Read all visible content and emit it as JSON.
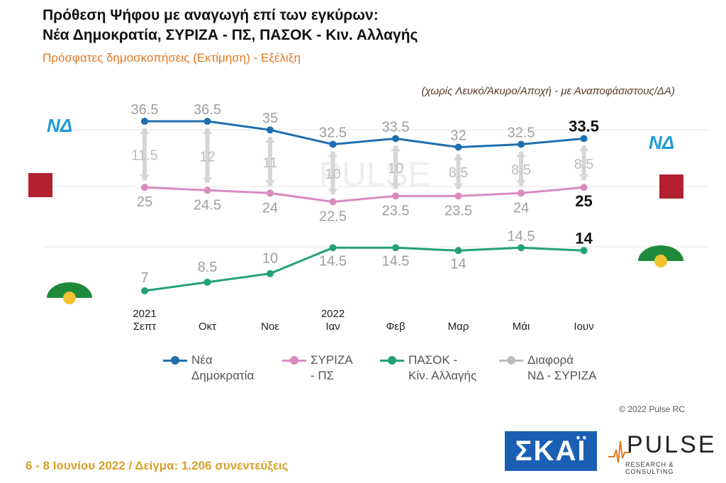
{
  "header": {
    "title_line1": "Πρόθεση Ψήφου με αναγωγή επί των εγκύρων:",
    "title_line2": "Νέα Δημοκρατία, ΣΥΡΙΖΑ - ΠΣ, ΠΑΣΟΚ - Κιν. Αλλαγής",
    "subtitle": "Πρόσφατες δημοσκοπήσεις (Εκτίμηση) - Εξέλιξη",
    "note": "(χωρίς Λευκό/Άκυρο/Αποχή - με Αναποφάσιστους/ΔΑ)"
  },
  "colors": {
    "nd": "#1f6fb0",
    "syriza": "#d98bbf",
    "pasok": "#23a178",
    "diff": "#bdbdbd"
  },
  "chart_data": {
    "type": "line",
    "categories": [
      [
        "2021",
        "Σεπτ"
      ],
      [
        "Οκτ"
      ],
      [
        "Νοε"
      ],
      [
        "2022",
        "Ιαν"
      ],
      [
        "Φεβ"
      ],
      [
        "Μαρ"
      ],
      [
        "Μάι"
      ],
      [
        "Ιουν"
      ]
    ],
    "series": [
      {
        "name": "Νέα Δημοκρατία",
        "key": "nd",
        "values": [
          36.5,
          36.5,
          35,
          32.5,
          33.5,
          32,
          32.5,
          33.5
        ],
        "labels": [
          "36.5",
          "36.5",
          "35",
          "32.5",
          "33.5",
          "32",
          "32.5",
          "33.5"
        ]
      },
      {
        "name": "ΣΥΡΙΖΑ - ΠΣ",
        "key": "syriza",
        "values": [
          25,
          24.5,
          24,
          22.5,
          23.5,
          23.5,
          24,
          25
        ],
        "labels": [
          "25",
          "24.5",
          "24",
          "22.5",
          "23.5",
          "23.5",
          "24",
          "25"
        ]
      },
      {
        "name": "ΠΑΣΟΚ - Κίν. Αλλαγής",
        "key": "pasok",
        "values": [
          7,
          8.5,
          10,
          14.5,
          14.5,
          14,
          14.5,
          14
        ],
        "labels": [
          "7",
          "8.5",
          "10",
          "14.5",
          "14.5",
          "14",
          "14.5",
          "14"
        ]
      },
      {
        "name": "Διαφορά ΝΔ - ΣΥΡΙΖΑ",
        "key": "diff",
        "values": [
          11.5,
          12,
          11,
          10,
          10,
          8.5,
          8.5,
          8.5
        ],
        "labels": [
          "11.5",
          "12",
          "11",
          "10",
          "10",
          "8.5",
          "8.5",
          "8.5"
        ]
      }
    ]
  },
  "legend": [
    {
      "label_line1": "Νέα",
      "label_line2": "Δημοκρατία",
      "color": "#1f6fb0"
    },
    {
      "label_line1": "ΣΥΡΙΖΑ",
      "label_line2": "- ΠΣ",
      "color": "#d98bbf"
    },
    {
      "label_line1": "ΠΑΣΟΚ -",
      "label_line2": "Κίν. Αλλαγής",
      "color": "#23a178"
    },
    {
      "label_line1": "Διαφορά",
      "label_line2": "ΝΔ - ΣΥΡΙΖΑ",
      "color": "#bdbdbd"
    }
  ],
  "logos": {
    "nd": "ΝΔ",
    "syriza": "ΣΥΡΙΖΑ",
    "pasok": "ΠΑΣΟΚ",
    "skai": "ΣΚΑΪ",
    "pulse": "PULSE",
    "pulse_tag": "RESEARCH & CONSULTING",
    "watermark": "PULSE"
  },
  "copyright": "© 2022 Pulse RC",
  "footer": "6 - 8 Ιουνίου 2022 / Δείγμα: 1.206 συνεντεύξεις"
}
